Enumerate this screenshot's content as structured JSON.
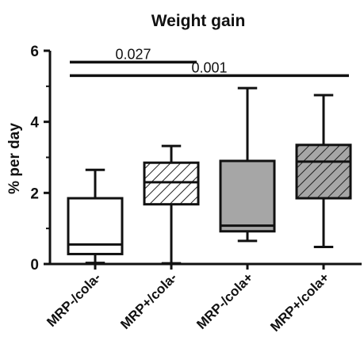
{
  "chart_data": {
    "type": "box",
    "title": "Weight gain",
    "xlabel": "",
    "ylabel": "% per day",
    "ylim": [
      0,
      6
    ],
    "yticks": [
      0,
      2,
      4,
      6
    ],
    "grid": false,
    "categories": [
      "MRP-/cola-",
      "MRP+/cola-",
      "MRP-/cola+",
      "MRP+/cola+"
    ],
    "boxes": [
      {
        "category": "MRP-/cola-",
        "min": 0.03,
        "q1": 0.28,
        "median": 0.55,
        "q3": 1.85,
        "max": 2.65,
        "fill": "#ffffff",
        "hatch": false
      },
      {
        "category": "MRP+/cola-",
        "min": 0.02,
        "q1": 1.68,
        "median": 2.3,
        "q3": 2.85,
        "max": 3.32,
        "fill": "#ffffff",
        "hatch": true
      },
      {
        "category": "MRP-/cola+",
        "min": 0.65,
        "q1": 0.92,
        "median": 1.08,
        "q3": 2.9,
        "max": 4.95,
        "fill": "#a6a6a6",
        "hatch": false
      },
      {
        "category": "MRP+/cola+",
        "min": 0.48,
        "q1": 1.85,
        "median": 2.88,
        "q3": 3.35,
        "max": 4.75,
        "fill": "#a6a6a6",
        "hatch": true
      }
    ],
    "annotations": [
      {
        "label": "0.027",
        "from": 0,
        "to": 1,
        "y": 5.68
      },
      {
        "label": "0.001",
        "from": 0,
        "to": 3,
        "y": 5.3
      }
    ]
  }
}
